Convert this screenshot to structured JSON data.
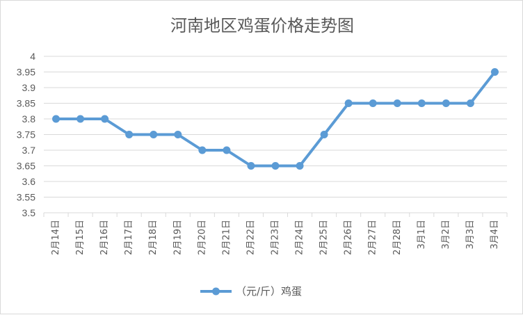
{
  "chart_data": {
    "type": "line",
    "title": "河南地区鸡蛋价格走势图",
    "categories": [
      "2月14日",
      "2月15日",
      "2月16日",
      "2月17日",
      "2月18日",
      "2月19日",
      "2月20日",
      "2月21日",
      "2月22日",
      "2月23日",
      "2月24日",
      "2月25日",
      "2月26日",
      "2月27日",
      "2月28日",
      "3月1日",
      "3月2日",
      "3月3日",
      "3月4日"
    ],
    "series": [
      {
        "name": "（元/斤）鸡蛋",
        "color": "#5b9bd5",
        "values": [
          3.8,
          3.8,
          3.8,
          3.75,
          3.75,
          3.75,
          3.7,
          3.7,
          3.65,
          3.65,
          3.65,
          3.75,
          3.85,
          3.85,
          3.85,
          3.85,
          3.85,
          3.85,
          3.95
        ]
      }
    ],
    "ylim": [
      3.5,
      4
    ],
    "yticks": [
      "3.5",
      "3.55",
      "3.6",
      "3.65",
      "3.7",
      "3.75",
      "3.8",
      "3.85",
      "3.9",
      "3.95",
      "4"
    ],
    "xlabel": "",
    "ylabel": "",
    "grid": true,
    "legend_position": "bottom",
    "gridline_color": "#d9d9d9"
  }
}
